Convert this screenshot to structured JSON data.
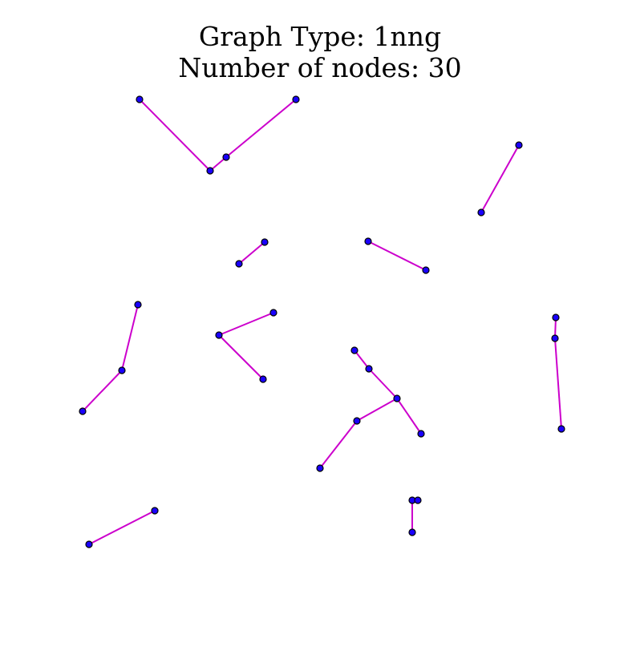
{
  "title": {
    "line1": "Graph Type: 1nng",
    "line2": "Number of nodes: 30"
  },
  "style": {
    "edge_color": "#cc00cc",
    "node_fill": "#1a00ff",
    "node_stroke": "#000000"
  },
  "graph": {
    "type": "1nng",
    "node_count": 30,
    "nodes": [
      {
        "id": "n1"
      },
      {
        "id": "n2"
      },
      {
        "id": "n3"
      },
      {
        "id": "n4"
      },
      {
        "id": "n5"
      },
      {
        "id": "n6"
      },
      {
        "id": "n7"
      },
      {
        "id": "n8"
      },
      {
        "id": "n9"
      },
      {
        "id": "n10"
      },
      {
        "id": "n11"
      },
      {
        "id": "n12"
      },
      {
        "id": "n13"
      },
      {
        "id": "n14"
      },
      {
        "id": "n15"
      },
      {
        "id": "n16"
      },
      {
        "id": "n17"
      },
      {
        "id": "n18"
      },
      {
        "id": "n19"
      },
      {
        "id": "n20"
      },
      {
        "id": "n21"
      },
      {
        "id": "n22"
      },
      {
        "id": "n23"
      },
      {
        "id": "n24"
      },
      {
        "id": "n25"
      },
      {
        "id": "n26"
      },
      {
        "id": "n27"
      },
      {
        "id": "n28"
      },
      {
        "id": "n29"
      },
      {
        "id": "n30"
      }
    ],
    "edges": [
      [
        "n1",
        "n4"
      ],
      [
        "n2",
        "n3"
      ],
      [
        "n3",
        "n4"
      ],
      [
        "n5",
        "n6"
      ],
      [
        "n7",
        "n8"
      ],
      [
        "n9",
        "n10"
      ],
      [
        "n11",
        "n12"
      ],
      [
        "n12",
        "n13"
      ],
      [
        "n14",
        "n15"
      ],
      [
        "n14",
        "n16"
      ],
      [
        "n17",
        "n18"
      ],
      [
        "n18",
        "n19"
      ],
      [
        "n20",
        "n21"
      ],
      [
        "n21",
        "n22"
      ],
      [
        "n20",
        "n23"
      ],
      [
        "n23",
        "n24"
      ],
      [
        "n25",
        "n26"
      ],
      [
        "n25",
        "n27"
      ],
      [
        "n28",
        "n29"
      ],
      [
        "n29",
        "n30"
      ]
    ]
  }
}
